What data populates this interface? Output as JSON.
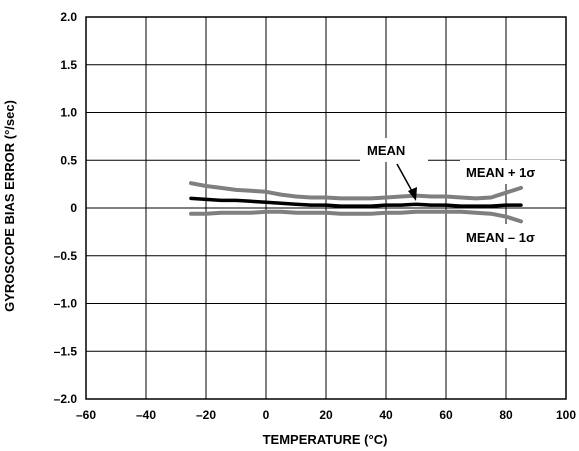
{
  "chart_data": {
    "type": "line",
    "xlabel": "TEMPERATURE (°C)",
    "ylabel": "GYROSCOPE BIAS ERROR (°/sec)",
    "xlim": [
      -60,
      100
    ],
    "ylim": [
      -2.0,
      2.0
    ],
    "x_ticks": [
      -60,
      -40,
      -20,
      0,
      20,
      40,
      60,
      80,
      100
    ],
    "x_tick_labels": [
      "–60",
      "–40",
      "–20",
      "0",
      "20",
      "40",
      "60",
      "80",
      "100"
    ],
    "y_ticks": [
      2.0,
      1.5,
      1.0,
      0.5,
      0,
      -0.5,
      -1.0,
      -1.5,
      -2.0
    ],
    "y_tick_labels": [
      "2.0",
      "1.5",
      "1.0",
      "0.5",
      "0",
      "–0.5",
      "–1.0",
      "–1.5",
      "–2.0"
    ],
    "grid": true,
    "series": [
      {
        "name": "MEAN + 1σ",
        "color": "#7f7f7f",
        "x": [
          -25,
          -20,
          -15,
          -10,
          -5,
          0,
          5,
          10,
          15,
          20,
          25,
          30,
          35,
          40,
          45,
          50,
          55,
          60,
          65,
          70,
          75,
          80,
          85
        ],
        "y": [
          0.26,
          0.23,
          0.21,
          0.19,
          0.18,
          0.17,
          0.14,
          0.12,
          0.11,
          0.11,
          0.1,
          0.1,
          0.1,
          0.11,
          0.12,
          0.13,
          0.12,
          0.12,
          0.11,
          0.1,
          0.11,
          0.16,
          0.21
        ]
      },
      {
        "name": "MEAN",
        "color": "#000000",
        "x": [
          -25,
          -20,
          -15,
          -10,
          -5,
          0,
          5,
          10,
          15,
          20,
          25,
          30,
          35,
          40,
          45,
          50,
          55,
          60,
          65,
          70,
          75,
          80,
          85
        ],
        "y": [
          0.1,
          0.09,
          0.08,
          0.08,
          0.07,
          0.06,
          0.05,
          0.04,
          0.03,
          0.03,
          0.02,
          0.02,
          0.02,
          0.03,
          0.03,
          0.04,
          0.03,
          0.03,
          0.02,
          0.02,
          0.02,
          0.03,
          0.03
        ]
      },
      {
        "name": "MEAN – 1σ",
        "color": "#7f7f7f",
        "x": [
          -25,
          -20,
          -15,
          -10,
          -5,
          0,
          5,
          10,
          15,
          20,
          25,
          30,
          35,
          40,
          45,
          50,
          55,
          60,
          65,
          70,
          75,
          80,
          85
        ],
        "y": [
          -0.06,
          -0.06,
          -0.05,
          -0.05,
          -0.05,
          -0.04,
          -0.04,
          -0.05,
          -0.05,
          -0.05,
          -0.06,
          -0.06,
          -0.06,
          -0.05,
          -0.05,
          -0.04,
          -0.04,
          -0.04,
          -0.04,
          -0.05,
          -0.06,
          -0.09,
          -0.14
        ]
      }
    ],
    "annotations": [
      {
        "text": "MEAN",
        "arrow_to": [
          49,
          0.04
        ]
      },
      {
        "text": "MEAN + 1σ"
      },
      {
        "text": "MEAN – 1σ"
      }
    ]
  }
}
